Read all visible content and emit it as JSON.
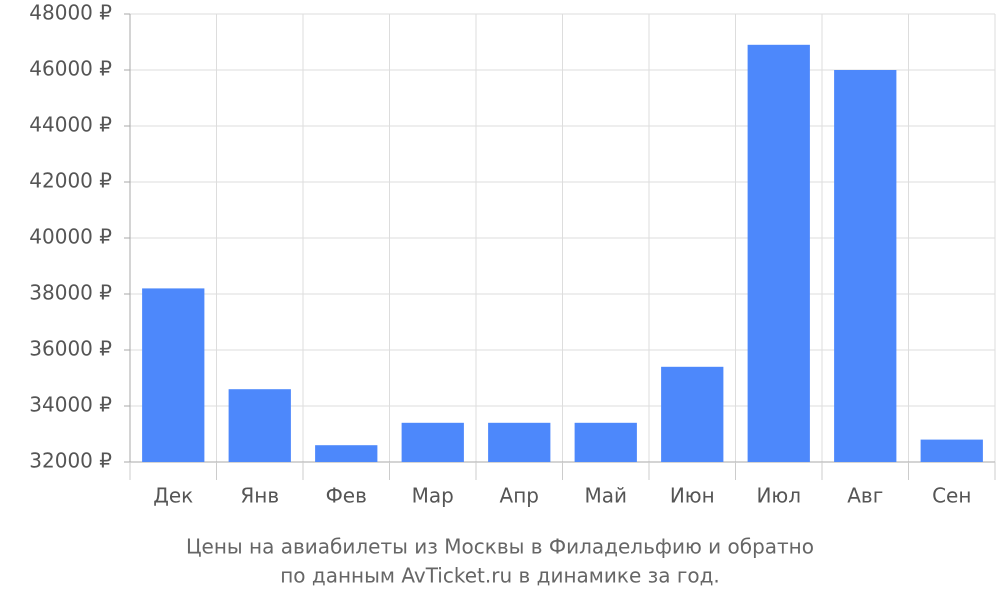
{
  "chart_data": {
    "type": "bar",
    "title": "Цены на авиабилеты из Москвы в Филадельфию и обратно",
    "subtitle": "по данным AvTicket.ru в динамике за год.",
    "categories": [
      "Дек",
      "Янв",
      "Фев",
      "Мар",
      "Апр",
      "Май",
      "Июн",
      "Июл",
      "Авг",
      "Сен"
    ],
    "values": [
      38200,
      34600,
      32600,
      33400,
      33400,
      33400,
      35400,
      46900,
      46000,
      32800
    ],
    "color": "#4d88fb",
    "ylim": [
      32000,
      48000
    ],
    "yticks": [
      {
        "value": 32000,
        "label": "32000 ₽"
      },
      {
        "value": 34000,
        "label": "34000 ₽"
      },
      {
        "value": 36000,
        "label": "36000 ₽"
      },
      {
        "value": 38000,
        "label": "38000 ₽"
      },
      {
        "value": 40000,
        "label": "40000 ₽"
      },
      {
        "value": 42000,
        "label": "42000 ₽"
      },
      {
        "value": 44000,
        "label": "44000 ₽"
      },
      {
        "value": 46000,
        "label": "46000 ₽"
      },
      {
        "value": 48000,
        "label": "48000 ₽"
      }
    ],
    "grid": true
  }
}
